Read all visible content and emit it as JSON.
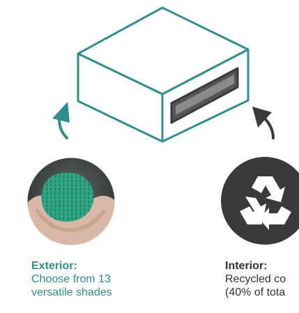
{
  "colors": {
    "teal": "#2f8f8d",
    "dark": "#3a3a3a",
    "text_dark": "#333333",
    "granule_green": "#2a9e7c"
  },
  "icons": [
    "box-icon",
    "curved-arrow-icon",
    "recycle-icon",
    "granules-in-hands-image"
  ],
  "exterior": {
    "title": "Exterior:",
    "line1": "Choose from 13",
    "line2": "versatile shades"
  },
  "interior": {
    "title": "Interior:",
    "line1": "Recycled co",
    "line2": "(40% of tota"
  }
}
